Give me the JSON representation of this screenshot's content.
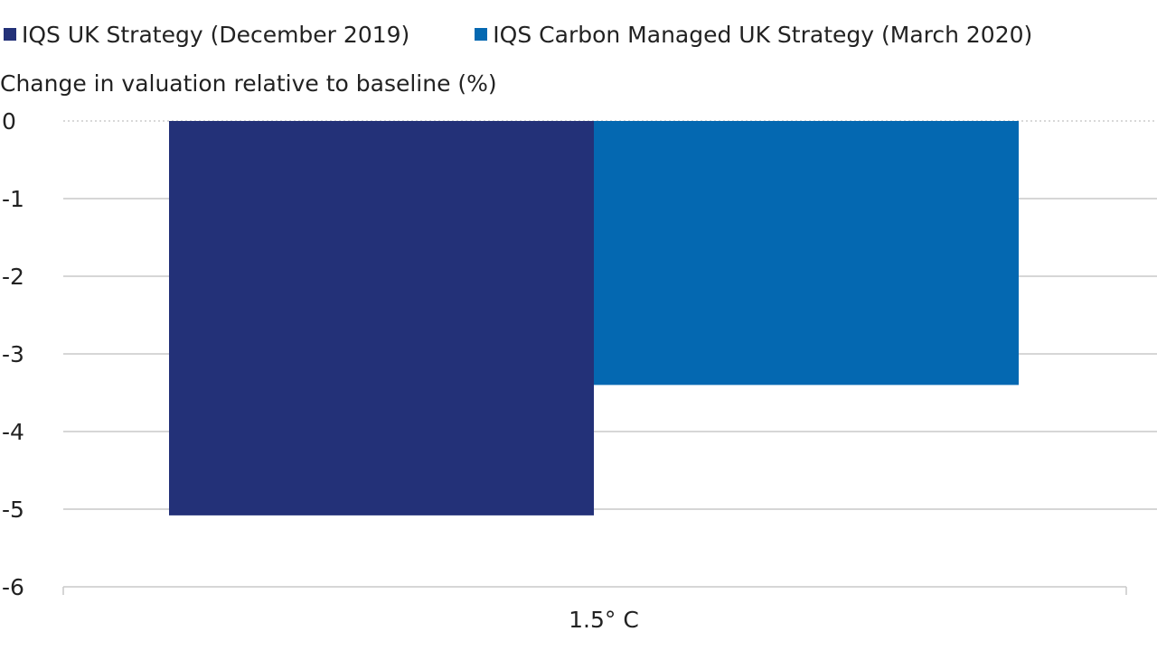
{
  "chart_data": {
    "type": "bar",
    "categories": [
      "1.5° C"
    ],
    "series": [
      {
        "name": "IQS UK Strategy (December 2019)",
        "values": [
          -5.08
        ],
        "color": "#233178"
      },
      {
        "name": "IQS Carbon Managed UK Strategy (March 2020)",
        "values": [
          -3.4
        ],
        "color": "#0468B1"
      }
    ],
    "ylabel": "Change in valuation relative to baseline (%)",
    "xlabel": "",
    "ylim": [
      -6,
      0
    ],
    "yticks": [
      0,
      -1,
      -2,
      -3,
      -4,
      -5,
      -6
    ],
    "grid": true,
    "legend_position": "top-left"
  }
}
